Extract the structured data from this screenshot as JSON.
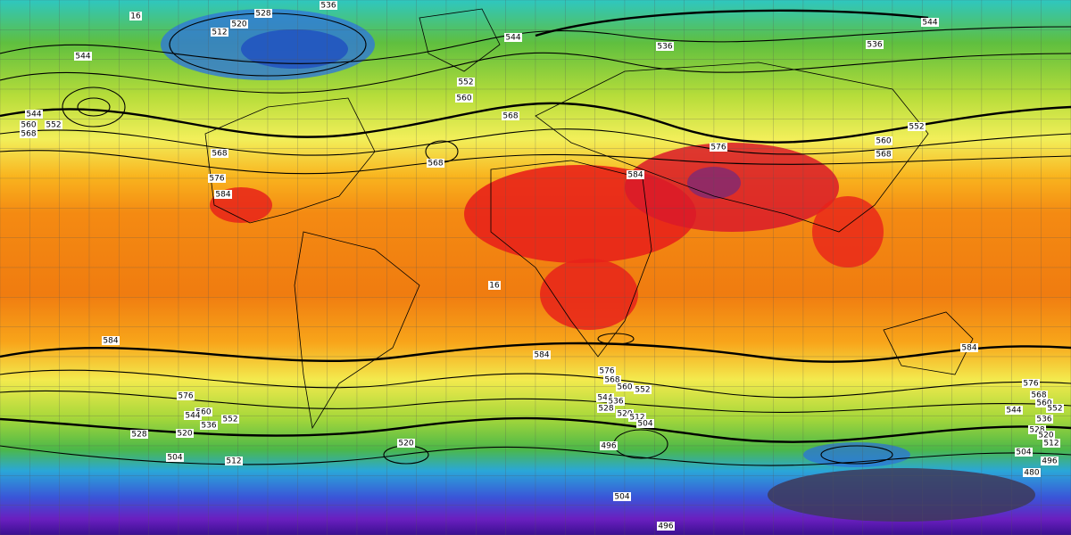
{
  "map": {
    "contour_labels": [
      "536",
      "528",
      "520",
      "512",
      "16",
      "544",
      "544",
      "536",
      "544",
      "536",
      "552",
      "560",
      "568",
      "552",
      "560",
      "568",
      "576",
      "584",
      "568",
      "560",
      "568",
      "552",
      "544",
      "576",
      "584",
      "568",
      "16",
      "584",
      "584",
      "584",
      "576",
      "568",
      "560",
      "552",
      "544",
      "536",
      "528",
      "520",
      "512",
      "504",
      "496",
      "576",
      "560",
      "552",
      "544",
      "536",
      "528",
      "520",
      "504",
      "512",
      "520",
      "504",
      "496",
      "576",
      "568",
      "560",
      "552",
      "544",
      "536",
      "528",
      "520",
      "512",
      "504",
      "496",
      "480"
    ]
  }
}
